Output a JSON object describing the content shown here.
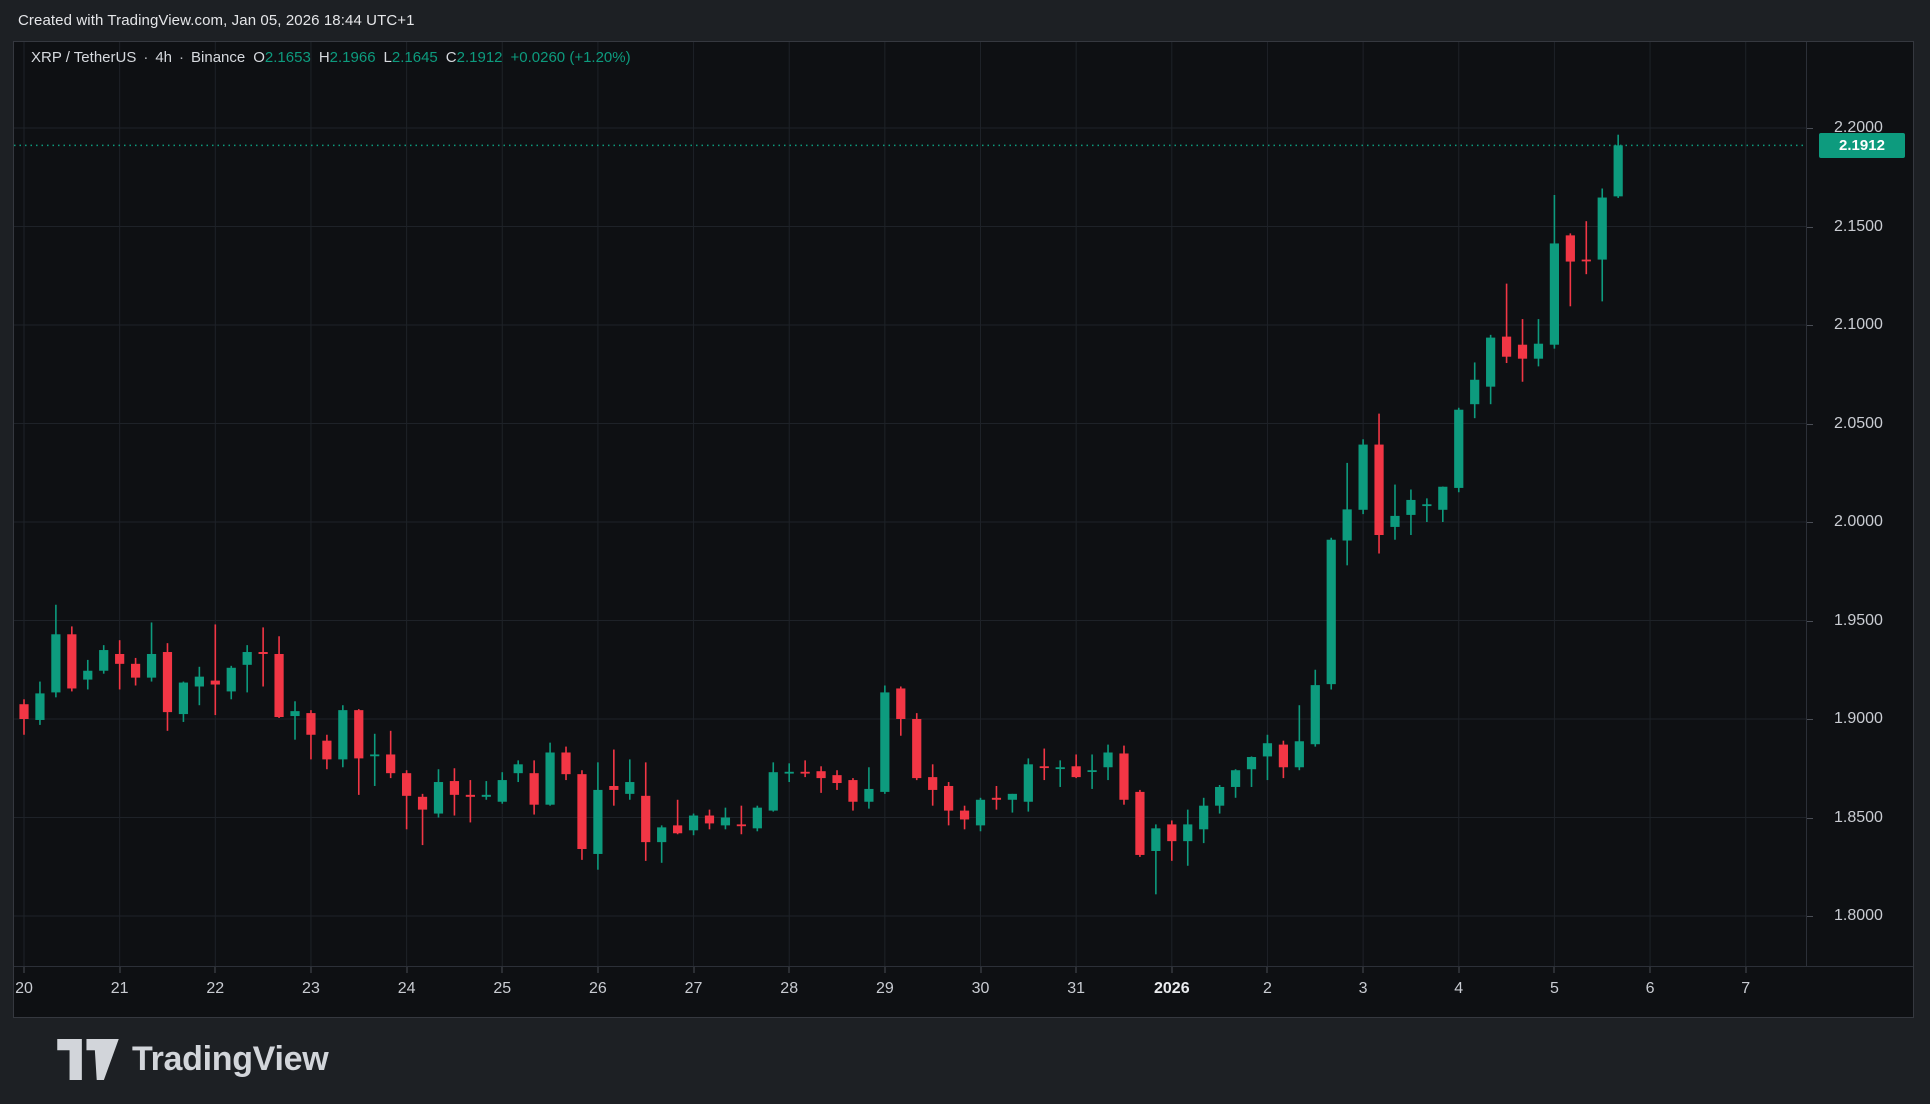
{
  "page": {
    "attribution": "Created with TradingView.com, Jan 05, 2026 18:44 UTC+1"
  },
  "symbol_bar": {
    "symbol": "XRP / TetherUS",
    "separator": "·",
    "interval": "4h",
    "exchange": "Binance",
    "ohlc": {
      "o_label": "O",
      "o": "2.1653",
      "h_label": "H",
      "h": "2.1966",
      "l_label": "L",
      "l": "2.1645",
      "c_label": "C",
      "c": "2.1912",
      "change": "+0.0260 (+1.20%)"
    }
  },
  "footer": {
    "brand": "TradingView",
    "logo_icon": "tradingview-mark"
  },
  "colors": {
    "page_bg": "#1d2024",
    "widget_bg": "#0e1013",
    "frame": "#35383f",
    "sep": "#2c3038",
    "grid": "#1e2228",
    "tick": "#4a4e56",
    "axis_text": "#c9ccd2",
    "axis_text_bold": "#e9ebee",
    "up": "#0d9b7e",
    "down": "#f23645",
    "badge_bg": "#0d9b7e",
    "badge_text": "#ffffff",
    "title_text": "#e5e6e9",
    "symbol_text": "#d6d9de",
    "logo": "#d2d5da"
  },
  "chart_data": {
    "type": "candlestick",
    "title": "XRP / TetherUS · 4h · Binance",
    "symbol": "XRP / TetherUS",
    "exchange": "Binance",
    "interval": "4h",
    "up_color": "#0d9b7e",
    "down_color": "#f23645",
    "grid": true,
    "legend_position": "top-left",
    "current_price": {
      "value": 2.1912,
      "label": "2.1912"
    },
    "y_axis": {
      "side": "right",
      "min": 1.78,
      "max": 2.22,
      "ticks": [
        {
          "label": "2.2000",
          "value": 2.2
        },
        {
          "label": "2.1500",
          "value": 2.15
        },
        {
          "label": "2.1000",
          "value": 2.1
        },
        {
          "label": "2.0500",
          "value": 2.05
        },
        {
          "label": "2.0000",
          "value": 2.0
        },
        {
          "label": "1.9500",
          "value": 1.95
        },
        {
          "label": "1.9000",
          "value": 1.9
        },
        {
          "label": "1.8500",
          "value": 1.85
        },
        {
          "label": "1.8000",
          "value": 1.8
        }
      ]
    },
    "x_axis": {
      "labels": [
        {
          "text": "20",
          "slot": 1
        },
        {
          "text": "21",
          "slot": 7
        },
        {
          "text": "22",
          "slot": 13
        },
        {
          "text": "23",
          "slot": 19
        },
        {
          "text": "24",
          "slot": 25
        },
        {
          "text": "25",
          "slot": 31
        },
        {
          "text": "26",
          "slot": 37
        },
        {
          "text": "27",
          "slot": 43
        },
        {
          "text": "28",
          "slot": 49
        },
        {
          "text": "29",
          "slot": 55
        },
        {
          "text": "30",
          "slot": 61
        },
        {
          "text": "31",
          "slot": 67
        },
        {
          "text": "2026",
          "slot": 73,
          "bold": true
        },
        {
          "text": "2",
          "slot": 79
        },
        {
          "text": "3",
          "slot": 85
        },
        {
          "text": "4",
          "slot": 91
        },
        {
          "text": "5",
          "slot": 97
        },
        {
          "text": "6",
          "slot": 103
        },
        {
          "text": "7",
          "slot": 109
        }
      ]
    },
    "series_columns": [
      "open",
      "high",
      "low",
      "close"
    ],
    "candles": [
      [
        1.9075,
        1.9095,
        1.8975,
        1.9015
      ],
      [
        1.9075,
        1.91,
        1.892,
        1.9
      ],
      [
        1.8995,
        1.919,
        1.897,
        1.913
      ],
      [
        1.9135,
        1.958,
        1.911,
        1.943
      ],
      [
        1.943,
        1.947,
        1.914,
        1.9155
      ],
      [
        1.92,
        1.93,
        1.915,
        1.9245
      ],
      [
        1.9245,
        1.9375,
        1.923,
        1.935
      ],
      [
        1.933,
        1.94,
        1.915,
        1.928
      ],
      [
        1.928,
        1.931,
        1.917,
        1.921
      ],
      [
        1.921,
        1.949,
        1.919,
        1.933
      ],
      [
        1.934,
        1.9385,
        1.894,
        1.9035
      ],
      [
        1.9025,
        1.919,
        1.8985,
        1.9185
      ],
      [
        1.9165,
        1.9265,
        1.907,
        1.9215
      ],
      [
        1.9195,
        1.948,
        1.902,
        1.9175
      ],
      [
        1.914,
        1.927,
        1.91,
        1.926
      ],
      [
        1.9275,
        1.9375,
        1.9135,
        1.934
      ],
      [
        1.934,
        1.9465,
        1.9165,
        1.933
      ],
      [
        1.933,
        1.942,
        1.9005,
        1.901
      ],
      [
        1.9015,
        1.909,
        1.8895,
        1.904
      ],
      [
        1.903,
        1.9045,
        1.8795,
        1.892
      ],
      [
        1.889,
        1.892,
        1.8745,
        1.8795
      ],
      [
        1.8795,
        1.907,
        1.8755,
        1.9045
      ],
      [
        1.9045,
        1.905,
        1.8615,
        1.88
      ],
      [
        1.8815,
        1.8925,
        1.866,
        1.882
      ],
      [
        1.882,
        1.894,
        1.87,
        1.8725
      ],
      [
        1.8725,
        1.874,
        1.844,
        1.861
      ],
      [
        1.8605,
        1.862,
        1.836,
        1.854
      ],
      [
        1.852,
        1.8745,
        1.85,
        1.868
      ],
      [
        1.8685,
        1.875,
        1.851,
        1.8615
      ],
      [
        1.8615,
        1.869,
        1.8475,
        1.8605
      ],
      [
        1.8605,
        1.8685,
        1.859,
        1.8615
      ],
      [
        1.858,
        1.873,
        1.857,
        1.869
      ],
      [
        1.8725,
        1.879,
        1.868,
        1.877
      ],
      [
        1.8725,
        1.879,
        1.8515,
        1.8565
      ],
      [
        1.8565,
        1.888,
        1.856,
        1.883
      ],
      [
        1.883,
        1.886,
        1.869,
        1.872
      ],
      [
        1.872,
        1.874,
        1.8285,
        1.834
      ],
      [
        1.8315,
        1.878,
        1.8235,
        1.864
      ],
      [
        1.866,
        1.8845,
        1.856,
        1.864
      ],
      [
        1.862,
        1.8795,
        1.859,
        1.868
      ],
      [
        1.861,
        1.878,
        1.828,
        1.8375
      ],
      [
        1.8375,
        1.846,
        1.827,
        1.845
      ],
      [
        1.846,
        1.859,
        1.8415,
        1.842
      ],
      [
        1.8435,
        1.852,
        1.841,
        1.851
      ],
      [
        1.851,
        1.854,
        1.844,
        1.847
      ],
      [
        1.846,
        1.855,
        1.844,
        1.85
      ],
      [
        1.8465,
        1.856,
        1.8415,
        1.846
      ],
      [
        1.8445,
        1.856,
        1.843,
        1.855
      ],
      [
        1.8535,
        1.878,
        1.853,
        1.873
      ],
      [
        1.873,
        1.8775,
        1.868,
        1.8732
      ],
      [
        1.8732,
        1.879,
        1.8705,
        1.8726
      ],
      [
        1.8735,
        1.876,
        1.8625,
        1.87
      ],
      [
        1.8715,
        1.874,
        1.864,
        1.8675
      ],
      [
        1.869,
        1.87,
        1.8535,
        1.858
      ],
      [
        1.858,
        1.8755,
        1.8545,
        1.8645
      ],
      [
        1.863,
        1.917,
        1.862,
        1.9135
      ],
      [
        1.9155,
        1.9165,
        1.8915,
        1.9
      ],
      [
        1.9,
        1.903,
        1.869,
        1.87
      ],
      [
        1.8705,
        1.877,
        1.856,
        1.864
      ],
      [
        1.866,
        1.868,
        1.846,
        1.8535
      ],
      [
        1.8535,
        1.856,
        1.844,
        1.849
      ],
      [
        1.846,
        1.86,
        1.843,
        1.859
      ],
      [
        1.86,
        1.866,
        1.854,
        1.859
      ],
      [
        1.859,
        1.862,
        1.8525,
        1.862
      ],
      [
        1.858,
        1.88,
        1.853,
        1.877
      ],
      [
        1.876,
        1.885,
        1.869,
        1.8758
      ],
      [
        1.875,
        1.879,
        1.8655,
        1.8755
      ],
      [
        1.876,
        1.882,
        1.87,
        1.8705
      ],
      [
        1.8735,
        1.882,
        1.8645,
        1.874
      ],
      [
        1.8755,
        1.887,
        1.869,
        1.883
      ],
      [
        1.8825,
        1.8865,
        1.8565,
        1.859
      ],
      [
        1.863,
        1.864,
        1.83,
        1.831
      ],
      [
        1.833,
        1.8465,
        1.811,
        1.8445
      ],
      [
        1.8465,
        1.8485,
        1.828,
        1.838
      ],
      [
        1.838,
        1.854,
        1.8255,
        1.8465
      ],
      [
        1.844,
        1.86,
        1.837,
        1.856
      ],
      [
        1.856,
        1.8665,
        1.852,
        1.8655
      ],
      [
        1.8655,
        1.8745,
        1.86,
        1.874
      ],
      [
        1.8745,
        1.881,
        1.8655,
        1.8807
      ],
      [
        1.881,
        1.892,
        1.869,
        1.8877
      ],
      [
        1.887,
        1.889,
        1.87,
        1.8755
      ],
      [
        1.8755,
        1.907,
        1.874,
        1.8887
      ],
      [
        1.8872,
        1.925,
        1.886,
        1.9172
      ],
      [
        1.9177,
        1.992,
        1.915,
        1.991
      ],
      [
        1.9906,
        2.03,
        1.978,
        2.0064
      ],
      [
        2.0062,
        2.042,
        2.004,
        2.0393
      ],
      [
        2.0393,
        2.055,
        1.984,
        1.9934
      ],
      [
        1.9975,
        2.019,
        1.991,
        2.0031
      ],
      [
        2.0036,
        2.0165,
        1.9934,
        2.0112
      ],
      [
        2.0087,
        2.012,
        2.0,
        2.009
      ],
      [
        2.0062,
        2.018,
        2.0,
        2.0179
      ],
      [
        2.0173,
        2.058,
        2.0151,
        2.057
      ],
      [
        2.0598,
        2.081,
        2.0527,
        2.0722
      ],
      [
        2.0687,
        2.095,
        2.0598,
        2.0936
      ],
      [
        2.0941,
        2.121,
        2.0807,
        2.0839
      ],
      [
        2.09,
        2.103,
        2.0712,
        2.0829
      ],
      [
        2.0829,
        2.103,
        2.079,
        2.0905
      ],
      [
        2.09,
        2.166,
        2.088,
        2.1414
      ],
      [
        2.1455,
        2.1465,
        2.1095,
        2.1322
      ],
      [
        2.1332,
        2.1527,
        2.1258,
        2.133
      ],
      [
        2.1332,
        2.1693,
        2.112,
        2.1647
      ],
      [
        2.1653,
        2.1966,
        2.1645,
        2.1912
      ]
    ]
  }
}
